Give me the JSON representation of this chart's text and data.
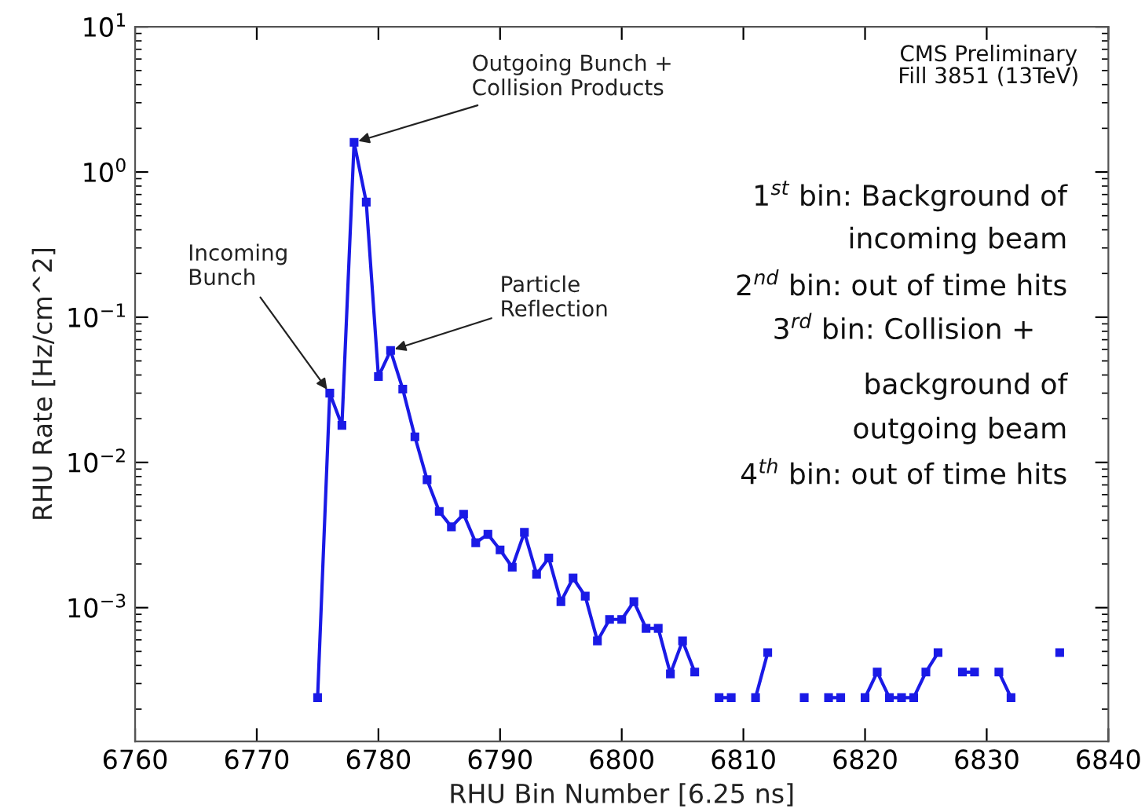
{
  "chart_data": {
    "type": "line",
    "xlabel": "RHU Bin Number [6.25 ns]",
    "ylabel": "RHU Rate [Hz/cm^2]",
    "x": [
      6775,
      6776,
      6777,
      6778,
      6779,
      6780,
      6781,
      6782,
      6783,
      6784,
      6785,
      6786,
      6787,
      6788,
      6789,
      6790,
      6791,
      6792,
      6793,
      6794,
      6795,
      6796,
      6797,
      6798,
      6799,
      6800,
      6801,
      6802,
      6803,
      6804,
      6805,
      6806,
      6807,
      6808,
      6809,
      6810,
      6811,
      6812,
      6813,
      6814,
      6815,
      6816,
      6817,
      6818,
      6819,
      6820,
      6821,
      6822,
      6823,
      6824,
      6825,
      6826,
      6827,
      6828,
      6829,
      6830,
      6831,
      6832,
      6833,
      6834,
      6835,
      6836
    ],
    "series": [
      {
        "color": "#1a1ae6",
        "values": [
          0.00024,
          0.03,
          0.018,
          1.6,
          0.62,
          0.039,
          0.059,
          0.032,
          0.015,
          0.0076,
          0.0046,
          0.0036,
          0.0044,
          0.0028,
          0.0032,
          0.0025,
          0.0019,
          0.0033,
          0.0017,
          0.0022,
          0.0011,
          0.0016,
          0.0012,
          0.00059,
          0.00083,
          0.00083,
          0.0011,
          0.00072,
          0.00072,
          0.00035,
          0.00059,
          0.00036,
          null,
          0.00024,
          0.00024,
          null,
          0.00024,
          0.00049,
          null,
          null,
          0.00024,
          null,
          0.00024,
          0.00024,
          null,
          0.00024,
          0.00036,
          0.00024,
          0.00024,
          0.00024,
          0.00036,
          0.00049,
          null,
          0.00036,
          0.00036,
          null,
          0.00036,
          0.00024,
          null,
          null,
          null,
          0.00049
        ]
      }
    ],
    "log": "y",
    "marker": "square",
    "line_style": "solid",
    "grid": false,
    "legend": false,
    "xlim": [
      6760,
      6840
    ],
    "xticks": [
      6760,
      6770,
      6780,
      6790,
      6800,
      6810,
      6820,
      6830,
      6840
    ],
    "ylim": [
      0.00012,
      10
    ],
    "yticks": [
      {
        "value": 0.001,
        "label": "10$^{−3}$"
      },
      {
        "value": 0.01,
        "label": "10$^{−2}$"
      },
      {
        "value": 0.1,
        "label": "10$^{−1}$"
      },
      {
        "value": 1,
        "label": "10$^{0}$"
      },
      {
        "value": 10,
        "label": "10$^{1}$"
      }
    ],
    "annotations": [
      {
        "text": "Incoming\nBunch",
        "x": 6776,
        "y": 0.03
      },
      {
        "text": "Outgoing Bunch +\nCollision Products",
        "x": 6778,
        "y": 1.6
      },
      {
        "text": "Particle\nReflection",
        "x": 6781,
        "y": 0.059
      },
      "CMS Preliminary\nFill 3851 (13TeV)",
      "1$^{st}$ bin: Background of",
      "incoming beam",
      "2$^{nd}$ bin: out of time hits",
      "3$^{rd}$ bin: Collision +",
      "background of",
      "outgoing beam",
      "4$^{th}$ bin: out of time hits"
    ]
  }
}
